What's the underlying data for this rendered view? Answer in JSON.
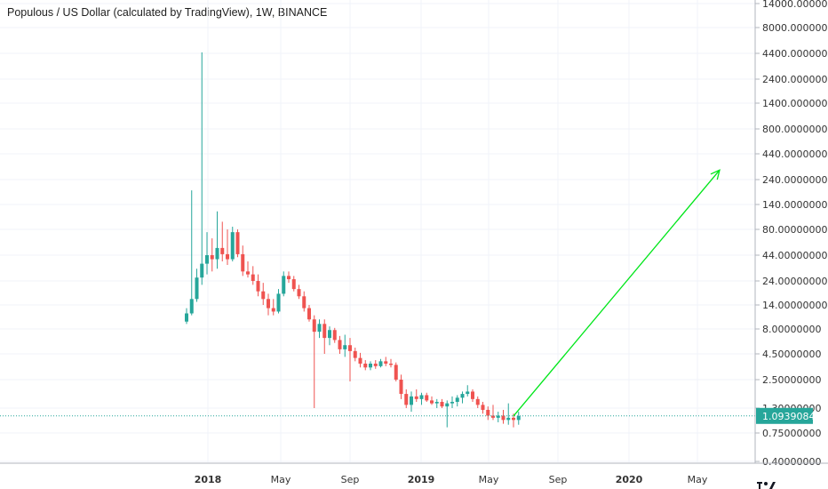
{
  "header": {
    "title": "Populous / US Dollar (calculated by TradingView), 1W, BINANCE"
  },
  "colors": {
    "up": "#26a69a",
    "down": "#ef5350",
    "arrow": "#00e61a",
    "price_line": "#26a69a",
    "grid": "#f0f3fa"
  },
  "chart_data": {
    "type": "candlestick",
    "symbol": "Populous / US Dollar",
    "interval": "1W",
    "exchange": "BINANCE",
    "y_scale": "log",
    "ylim": [
      0.3,
      14000
    ],
    "y_ticks": [
      {
        "value": 14000,
        "label": "14000.00000000"
      },
      {
        "value": 8000,
        "label": "8000.00000000"
      },
      {
        "value": 4400,
        "label": "4400.00000000"
      },
      {
        "value": 2400,
        "label": "2400.00000000"
      },
      {
        "value": 1400,
        "label": "1400.00000000"
      },
      {
        "value": 800,
        "label": "800.00000000"
      },
      {
        "value": 440,
        "label": "440.00000000"
      },
      {
        "value": 240,
        "label": "240.00000000"
      },
      {
        "value": 140,
        "label": "140.00000000"
      },
      {
        "value": 80,
        "label": "80.00000000"
      },
      {
        "value": 44,
        "label": "44.00000000"
      },
      {
        "value": 24,
        "label": "24.00000000"
      },
      {
        "value": 14,
        "label": "14.00000000"
      },
      {
        "value": 8,
        "label": "8.00000000"
      },
      {
        "value": 4.5,
        "label": "4.50000000"
      },
      {
        "value": 2.5,
        "label": "2.50000000"
      },
      {
        "value": 1.3,
        "label": "1.30000000"
      },
      {
        "value": 0.75,
        "label": "0.75000000"
      },
      {
        "value": 0.4,
        "label": "0.40000000"
      }
    ],
    "x_ticks": [
      "2018",
      "May",
      "Sep",
      "2019",
      "May",
      "Sep",
      "2020",
      "May"
    ],
    "bold_x_ticks": [
      "2018",
      "2019",
      "2020"
    ],
    "current_price": 1.0939084,
    "current_price_label": "1.09390840",
    "candles": [
      {
        "o": 9.5,
        "h": 13,
        "l": 9,
        "c": 11.5
      },
      {
        "o": 11.5,
        "h": 190,
        "l": 11,
        "c": 16
      },
      {
        "o": 16,
        "h": 32,
        "l": 15,
        "c": 26
      },
      {
        "o": 26,
        "h": 4500,
        "l": 22,
        "c": 36
      },
      {
        "o": 36,
        "h": 75,
        "l": 28,
        "c": 44
      },
      {
        "o": 44,
        "h": 65,
        "l": 30,
        "c": 40
      },
      {
        "o": 40,
        "h": 120,
        "l": 32,
        "c": 52
      },
      {
        "o": 52,
        "h": 95,
        "l": 38,
        "c": 45
      },
      {
        "o": 45,
        "h": 80,
        "l": 35,
        "c": 40
      },
      {
        "o": 40,
        "h": 85,
        "l": 38,
        "c": 75
      },
      {
        "o": 75,
        "h": 80,
        "l": 42,
        "c": 45
      },
      {
        "o": 45,
        "h": 55,
        "l": 27,
        "c": 30
      },
      {
        "o": 30,
        "h": 38,
        "l": 26,
        "c": 28
      },
      {
        "o": 28,
        "h": 34,
        "l": 22,
        "c": 24
      },
      {
        "o": 24,
        "h": 28,
        "l": 17,
        "c": 19
      },
      {
        "o": 19,
        "h": 23,
        "l": 14,
        "c": 16
      },
      {
        "o": 16,
        "h": 18,
        "l": 11,
        "c": 13
      },
      {
        "o": 13,
        "h": 16,
        "l": 11,
        "c": 12
      },
      {
        "o": 12,
        "h": 20,
        "l": 11.5,
        "c": 18
      },
      {
        "o": 18,
        "h": 30,
        "l": 17,
        "c": 27
      },
      {
        "o": 27,
        "h": 30,
        "l": 23,
        "c": 25
      },
      {
        "o": 25,
        "h": 27,
        "l": 19,
        "c": 20
      },
      {
        "o": 20,
        "h": 22,
        "l": 16,
        "c": 17
      },
      {
        "o": 17,
        "h": 19,
        "l": 12,
        "c": 13
      },
      {
        "o": 13,
        "h": 14,
        "l": 9.5,
        "c": 10
      },
      {
        "o": 10,
        "h": 11,
        "l": 1.3,
        "c": 7.5
      },
      {
        "o": 7.5,
        "h": 10,
        "l": 6.5,
        "c": 9
      },
      {
        "o": 9,
        "h": 10,
        "l": 4.5,
        "c": 6.5
      },
      {
        "o": 6.5,
        "h": 8.5,
        "l": 5.5,
        "c": 7.8
      },
      {
        "o": 7.8,
        "h": 8.2,
        "l": 5.8,
        "c": 6.2
      },
      {
        "o": 6.2,
        "h": 6.8,
        "l": 4.5,
        "c": 5.0
      },
      {
        "o": 5.0,
        "h": 7.0,
        "l": 4.2,
        "c": 5.5
      },
      {
        "o": 5.5,
        "h": 6.5,
        "l": 2.4,
        "c": 4.8
      },
      {
        "o": 4.8,
        "h": 5.2,
        "l": 3.8,
        "c": 4.1
      },
      {
        "o": 4.1,
        "h": 4.6,
        "l": 3.3,
        "c": 3.6
      },
      {
        "o": 3.6,
        "h": 3.9,
        "l": 3.1,
        "c": 3.3
      },
      {
        "o": 3.3,
        "h": 3.8,
        "l": 3.1,
        "c": 3.6
      },
      {
        "o": 3.6,
        "h": 3.9,
        "l": 3.2,
        "c": 3.4
      },
      {
        "o": 3.4,
        "h": 4.0,
        "l": 3.3,
        "c": 3.8
      },
      {
        "o": 3.8,
        "h": 4.2,
        "l": 3.4,
        "c": 3.6
      },
      {
        "o": 3.6,
        "h": 4.0,
        "l": 3.3,
        "c": 3.5
      },
      {
        "o": 3.5,
        "h": 3.7,
        "l": 2.4,
        "c": 2.5
      },
      {
        "o": 2.5,
        "h": 2.8,
        "l": 1.6,
        "c": 1.8
      },
      {
        "o": 1.8,
        "h": 2.0,
        "l": 1.3,
        "c": 1.4
      },
      {
        "o": 1.4,
        "h": 1.9,
        "l": 1.2,
        "c": 1.7
      },
      {
        "o": 1.7,
        "h": 2.0,
        "l": 1.5,
        "c": 1.6
      },
      {
        "o": 1.6,
        "h": 1.85,
        "l": 1.4,
        "c": 1.75
      },
      {
        "o": 1.75,
        "h": 1.85,
        "l": 1.5,
        "c": 1.55
      },
      {
        "o": 1.55,
        "h": 1.7,
        "l": 1.4,
        "c": 1.45
      },
      {
        "o": 1.45,
        "h": 1.6,
        "l": 1.3,
        "c": 1.5
      },
      {
        "o": 1.5,
        "h": 1.6,
        "l": 1.3,
        "c": 1.35
      },
      {
        "o": 1.35,
        "h": 1.55,
        "l": 0.85,
        "c": 1.45
      },
      {
        "o": 1.45,
        "h": 1.7,
        "l": 1.3,
        "c": 1.5
      },
      {
        "o": 1.5,
        "h": 1.75,
        "l": 1.35,
        "c": 1.65
      },
      {
        "o": 1.65,
        "h": 1.9,
        "l": 1.45,
        "c": 1.8
      },
      {
        "o": 1.8,
        "h": 2.2,
        "l": 1.7,
        "c": 1.9
      },
      {
        "o": 1.9,
        "h": 2.0,
        "l": 1.5,
        "c": 1.6
      },
      {
        "o": 1.6,
        "h": 1.7,
        "l": 1.3,
        "c": 1.4
      },
      {
        "o": 1.4,
        "h": 1.5,
        "l": 1.15,
        "c": 1.25
      },
      {
        "o": 1.25,
        "h": 1.35,
        "l": 1.0,
        "c": 1.1
      },
      {
        "o": 1.1,
        "h": 1.4,
        "l": 1.0,
        "c": 1.05
      },
      {
        "o": 1.05,
        "h": 1.2,
        "l": 0.95,
        "c": 1.1
      },
      {
        "o": 1.1,
        "h": 1.25,
        "l": 0.92,
        "c": 1.0
      },
      {
        "o": 1.0,
        "h": 1.45,
        "l": 0.9,
        "c": 1.05
      },
      {
        "o": 1.05,
        "h": 1.15,
        "l": 0.85,
        "c": 1.0
      },
      {
        "o": 1.0,
        "h": 1.2,
        "l": 0.9,
        "c": 1.09
      }
    ],
    "projection_arrow": {
      "from": {
        "price": 1.09
      },
      "to": {
        "price": 300
      }
    }
  }
}
